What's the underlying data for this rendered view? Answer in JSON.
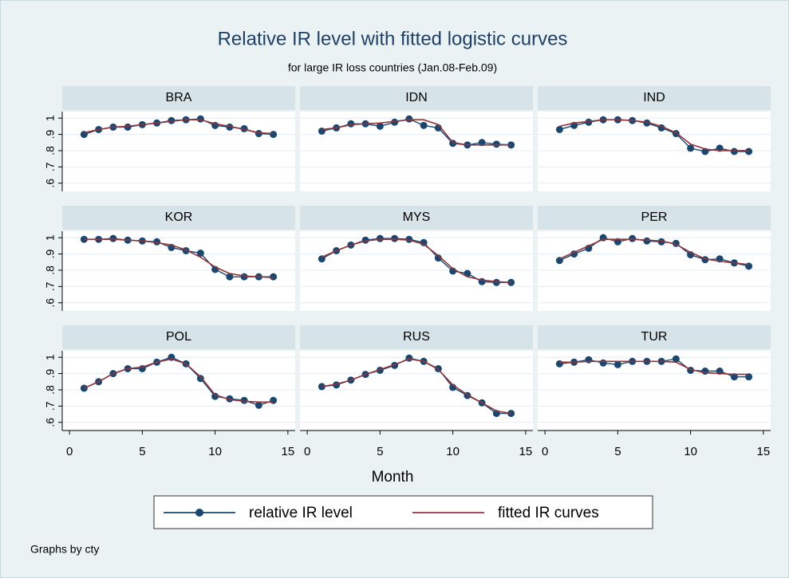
{
  "chart_data": {
    "type": "line",
    "title": "Relative IR level with fitted logistic curves",
    "subtitle": "for large IR loss countries (Jan.08-Feb.09)",
    "x_label": "Month",
    "note": "Graphs by cty",
    "grid": true,
    "xlim": [
      -0.5,
      15.5
    ],
    "xticks": [
      0,
      5,
      10,
      15
    ],
    "ylim": [
      0.55,
      1.04
    ],
    "yticks": [
      {
        "value": 0.6,
        "label": ".6"
      },
      {
        "value": 0.7,
        "label": ".7"
      },
      {
        "value": 0.8,
        "label": ".8"
      },
      {
        "value": 0.9,
        "label": ".9"
      },
      1
    ],
    "x": [
      1,
      2,
      3,
      4,
      5,
      6,
      7,
      8,
      9,
      10,
      11,
      12,
      13,
      14
    ],
    "legend": [
      {
        "name": "relative IR level",
        "color": "#1a476f",
        "marker": true
      },
      {
        "name": "fitted IR curves",
        "color": "#90353b",
        "marker": false
      }
    ],
    "panels": [
      {
        "title": "BRA",
        "series": [
          {
            "values": [
              0.9,
              0.93,
              0.945,
              0.945,
              0.96,
              0.97,
              0.985,
              0.99,
              0.995,
              0.955,
              0.945,
              0.935,
              0.905,
              0.9
            ]
          },
          {
            "values": [
              0.91,
              0.93,
              0.945,
              0.95,
              0.96,
              0.97,
              0.98,
              0.99,
              0.99,
              0.965,
              0.95,
              0.93,
              0.91,
              0.905
            ]
          }
        ]
      },
      {
        "title": "IDN",
        "series": [
          {
            "values": [
              0.92,
              0.94,
              0.965,
              0.965,
              0.95,
              0.975,
              0.995,
              0.955,
              0.94,
              0.845,
              0.835,
              0.85,
              0.84,
              0.835
            ]
          },
          {
            "values": [
              0.93,
              0.94,
              0.96,
              0.965,
              0.97,
              0.98,
              0.99,
              0.99,
              0.96,
              0.85,
              0.835,
              0.835,
              0.835,
              0.835
            ]
          }
        ]
      },
      {
        "title": "IND",
        "series": [
          {
            "values": [
              0.93,
              0.955,
              0.975,
              0.99,
              0.99,
              0.985,
              0.97,
              0.94,
              0.905,
              0.815,
              0.795,
              0.815,
              0.795,
              0.795
            ]
          },
          {
            "values": [
              0.95,
              0.97,
              0.98,
              0.99,
              0.99,
              0.985,
              0.975,
              0.95,
              0.91,
              0.84,
              0.81,
              0.8,
              0.8,
              0.8
            ]
          }
        ]
      },
      {
        "title": "KOR",
        "series": [
          {
            "values": [
              0.99,
              0.99,
              0.995,
              0.985,
              0.98,
              0.975,
              0.94,
              0.92,
              0.905,
              0.805,
              0.76,
              0.76,
              0.76,
              0.76
            ]
          },
          {
            "values": [
              0.99,
              0.99,
              0.99,
              0.985,
              0.98,
              0.97,
              0.955,
              0.925,
              0.88,
              0.82,
              0.78,
              0.765,
              0.76,
              0.755
            ]
          }
        ]
      },
      {
        "title": "MYS",
        "series": [
          {
            "values": [
              0.87,
              0.92,
              0.955,
              0.985,
              0.995,
              0.995,
              0.99,
              0.97,
              0.875,
              0.795,
              0.78,
              0.73,
              0.725,
              0.725
            ]
          },
          {
            "values": [
              0.88,
              0.92,
              0.955,
              0.98,
              0.99,
              0.99,
              0.985,
              0.96,
              0.89,
              0.81,
              0.76,
              0.74,
              0.73,
              0.725
            ]
          }
        ]
      },
      {
        "title": "PER",
        "series": [
          {
            "values": [
              0.86,
              0.9,
              0.935,
              1.0,
              0.975,
              0.995,
              0.98,
              0.975,
              0.965,
              0.895,
              0.865,
              0.87,
              0.845,
              0.825
            ]
          },
          {
            "values": [
              0.87,
              0.91,
              0.95,
              0.99,
              0.99,
              0.99,
              0.985,
              0.98,
              0.96,
              0.91,
              0.87,
              0.855,
              0.845,
              0.835
            ]
          }
        ]
      },
      {
        "title": "POL",
        "series": [
          {
            "values": [
              0.81,
              0.85,
              0.9,
              0.93,
              0.93,
              0.97,
              1.0,
              0.96,
              0.87,
              0.76,
              0.745,
              0.735,
              0.705,
              0.735
            ]
          },
          {
            "values": [
              0.81,
              0.85,
              0.9,
              0.93,
              0.94,
              0.97,
              0.99,
              0.96,
              0.88,
              0.77,
              0.74,
              0.73,
              0.725,
              0.725
            ]
          }
        ]
      },
      {
        "title": "RUS",
        "series": [
          {
            "values": [
              0.82,
              0.83,
              0.86,
              0.895,
              0.92,
              0.95,
              0.995,
              0.975,
              0.93,
              0.815,
              0.765,
              0.72,
              0.655,
              0.655
            ]
          },
          {
            "values": [
              0.82,
              0.835,
              0.86,
              0.895,
              0.925,
              0.955,
              0.99,
              0.975,
              0.925,
              0.83,
              0.77,
              0.72,
              0.67,
              0.655
            ]
          }
        ]
      },
      {
        "title": "TUR",
        "series": [
          {
            "values": [
              0.96,
              0.97,
              0.985,
              0.965,
              0.955,
              0.975,
              0.975,
              0.975,
              0.99,
              0.92,
              0.915,
              0.915,
              0.88,
              0.88
            ]
          },
          {
            "values": [
              0.97,
              0.97,
              0.975,
              0.975,
              0.975,
              0.975,
              0.975,
              0.975,
              0.97,
              0.925,
              0.905,
              0.9,
              0.895,
              0.895
            ]
          }
        ]
      }
    ]
  }
}
